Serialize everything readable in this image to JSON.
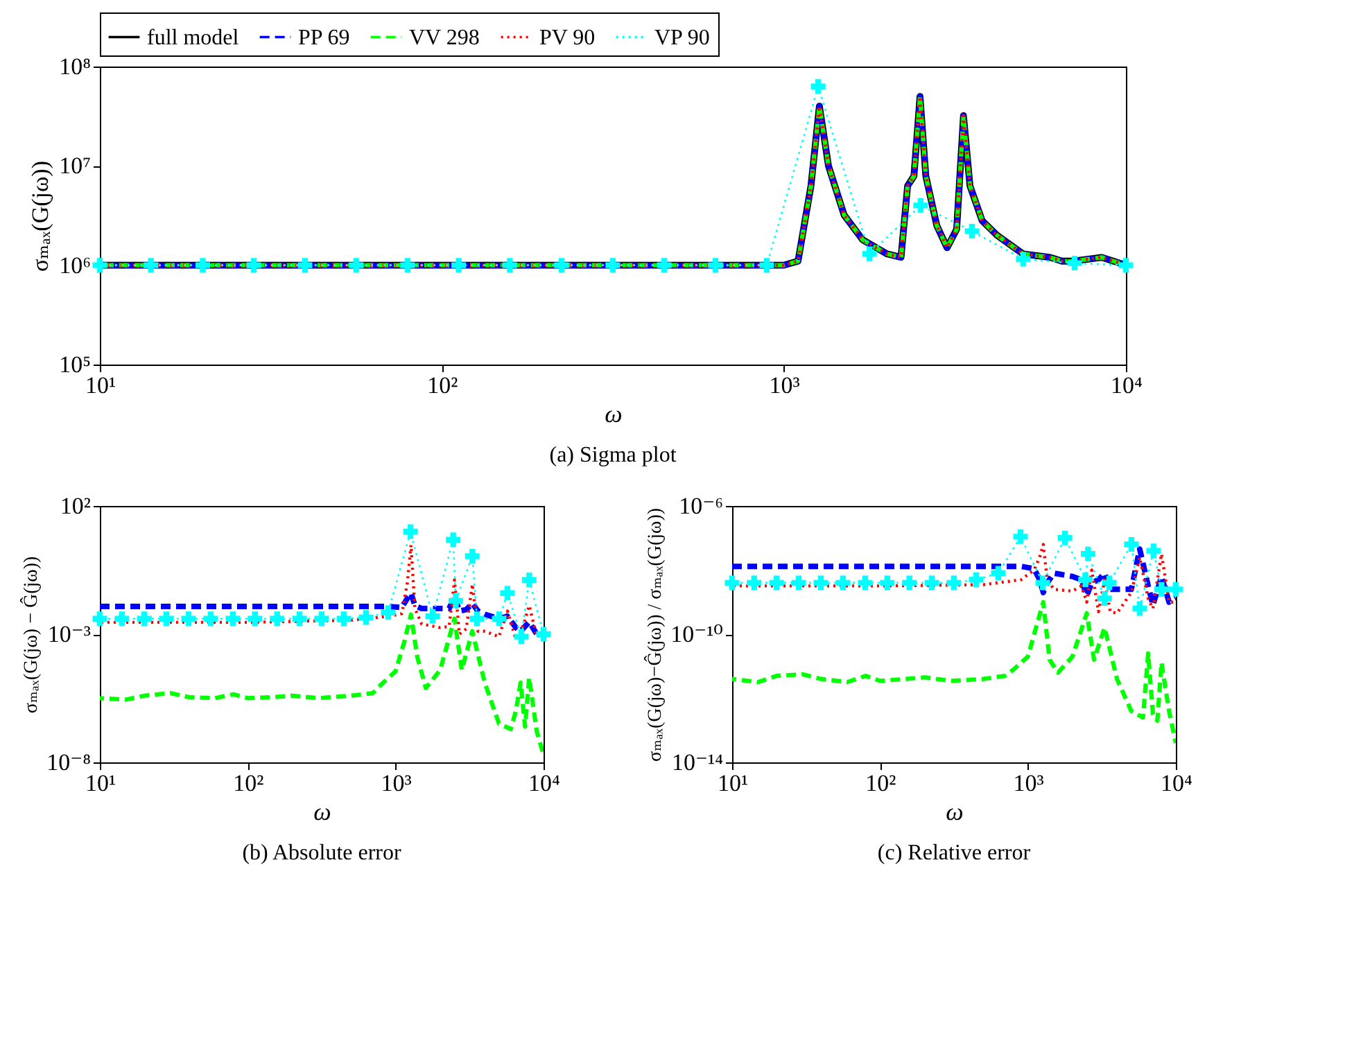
{
  "chart_data": [
    {
      "type": "line",
      "title": "(a) Sigma plot",
      "xlabel": "ω",
      "ylabel": "σₘₐₓ(G(jω))",
      "log": "xy",
      "legend": "top",
      "xlim": [
        10,
        10000
      ],
      "ylim": [
        100000,
        100000000
      ],
      "xticks": [
        {
          "value": 10,
          "label": "10¹"
        },
        {
          "value": 100,
          "label": "10²"
        },
        {
          "value": 1000,
          "label": "10³"
        },
        {
          "value": 10000,
          "label": "10⁴"
        }
      ],
      "yticks": [
        {
          "value": 100000,
          "label": "10⁵"
        },
        {
          "value": 1000000,
          "label": "10⁶"
        },
        {
          "value": 10000000,
          "label": "10⁷"
        },
        {
          "value": 100000000,
          "label": "10⁸"
        }
      ],
      "x": [
        10,
        100,
        1000,
        1100,
        1200,
        1270,
        1350,
        1500,
        1700,
        2000,
        2200,
        2300,
        2400,
        2500,
        2600,
        2800,
        3000,
        3200,
        3350,
        3500,
        3800,
        4200,
        5000,
        6000,
        6500,
        7000,
        8500,
        10000
      ],
      "series": [
        {
          "name": "full model",
          "color": "#000000",
          "line_style": "solid",
          "values": [
            1000000.0,
            1000000.0,
            1000000.0,
            1100000.0,
            6300000.0,
            40000000.0,
            10000000.0,
            3200000.0,
            1800000.0,
            1300000.0,
            1200000.0,
            6300000.0,
            7900000.0,
            50000000.0,
            7900000.0,
            2500000.0,
            1500000.0,
            2300000.0,
            32000000.0,
            6300000.0,
            2800000.0,
            2000000.0,
            1300000.0,
            1200000.0,
            1100000.0,
            1100000.0,
            1200000.0,
            1000000.0
          ]
        },
        {
          "name": "PP 69",
          "color": "#0000ff",
          "line_style": "dashed",
          "values": [
            1000000.0,
            1000000.0,
            1000000.0,
            1100000.0,
            6300000.0,
            40000000.0,
            10000000.0,
            3200000.0,
            1800000.0,
            1300000.0,
            1200000.0,
            6300000.0,
            7900000.0,
            50000000.0,
            7900000.0,
            2500000.0,
            1500000.0,
            2300000.0,
            32000000.0,
            6300000.0,
            2800000.0,
            2000000.0,
            1300000.0,
            1200000.0,
            1100000.0,
            1100000.0,
            1200000.0,
            1000000.0
          ]
        },
        {
          "name": "VV 298",
          "color": "#00ff00",
          "line_style": "dashed",
          "values": [
            1000000.0,
            1000000.0,
            1000000.0,
            1100000.0,
            6300000.0,
            40000000.0,
            10000000.0,
            3200000.0,
            1800000.0,
            1300000.0,
            1200000.0,
            6300000.0,
            7900000.0,
            50000000.0,
            7900000.0,
            2500000.0,
            1500000.0,
            2300000.0,
            32000000.0,
            6300000.0,
            2800000.0,
            2000000.0,
            1300000.0,
            1200000.0,
            1100000.0,
            1100000.0,
            1200000.0,
            1000000.0
          ]
        },
        {
          "name": "PV 90",
          "color": "#ff0000",
          "line_style": "dotted",
          "values": [
            1000000.0,
            1000000.0,
            1000000.0,
            1100000.0,
            6300000.0,
            40000000.0,
            10000000.0,
            3200000.0,
            1800000.0,
            1300000.0,
            1200000.0,
            6300000.0,
            7900000.0,
            50000000.0,
            7900000.0,
            2500000.0,
            1500000.0,
            2300000.0,
            32000000.0,
            6300000.0,
            2800000.0,
            2000000.0,
            1300000.0,
            1200000.0,
            1100000.0,
            1100000.0,
            1200000.0,
            1000000.0
          ]
        },
        {
          "name": "VP 90",
          "color": "#00ffff",
          "line_style": "dotted",
          "marker": "cross",
          "x": [
            10,
            14.1,
            20,
            28.2,
            39.8,
            56.2,
            79.4,
            112,
            158,
            224,
            316,
            447,
            631,
            891,
            1260,
            1780,
            2510,
            3550,
            5010,
            7080,
            10000
          ],
          "values": [
            1000000.0,
            1000000.0,
            1000000.0,
            1000000.0,
            1000000.0,
            1000000.0,
            1000000.0,
            1000000.0,
            1000000.0,
            1000000.0,
            1000000.0,
            1000000.0,
            1000000.0,
            1000000.0,
            63000000.0,
            1300000.0,
            4000000.0,
            2200000.0,
            1150000.0,
            1050000.0,
            1000000.0
          ]
        }
      ]
    },
    {
      "type": "line",
      "title": "(b) Absolute error",
      "xlabel": "ω",
      "ylabel": "σₘₐₓ(G(jω) − Ĝ(jω))",
      "log": "xy",
      "xlim": [
        10,
        10000
      ],
      "ylim": [
        1e-08,
        100
      ],
      "xticks": [
        {
          "value": 10,
          "label": "10¹"
        },
        {
          "value": 100,
          "label": "10²"
        },
        {
          "value": 1000,
          "label": "10³"
        },
        {
          "value": 10000,
          "label": "10⁴"
        }
      ],
      "yticks": [
        {
          "value": 1e-08,
          "label": "10⁻⁸"
        },
        {
          "value": 0.001,
          "label": "10⁻³"
        },
        {
          "value": 100,
          "label": "10²"
        }
      ],
      "x": [
        10,
        100,
        500,
        900,
        1100,
        1200,
        1270,
        1350,
        1500,
        2000,
        2300,
        2500,
        2700,
        3000,
        3300,
        3600,
        4000,
        5000,
        5700,
        6500,
        7000,
        8000,
        9000,
        10000
      ],
      "series": [
        {
          "color": "#0000ff",
          "line_style": "dashed",
          "values": [
            0.012,
            0.012,
            0.012,
            0.012,
            0.011,
            0.025,
            0.04,
            0.013,
            0.01,
            0.01,
            0.01,
            0.028,
            0.008,
            0.009,
            0.016,
            0.008,
            0.006,
            0.004,
            0.005,
            0.0018,
            0.0013,
            0.003,
            0.001,
            0.001
          ]
        },
        {
          "color": "#00ff00",
          "line_style": "dashed",
          "x": [
            10,
            15,
            20,
            30,
            40,
            60,
            80,
            100,
            150,
            200,
            300,
            500,
            700,
            800,
            1000,
            1150,
            1270,
            1400,
            1600,
            2000,
            2500,
            2800,
            3300,
            4000,
            5000,
            6000,
            6500,
            7000,
            7500,
            8000,
            9000,
            10000
          ],
          "values": [
            3.2e-06,
            2.8e-06,
            4e-06,
            5e-06,
            3.5e-06,
            3.2e-06,
            4.5e-06,
            3.2e-06,
            3.5e-06,
            4e-06,
            3.2e-06,
            4e-06,
            5e-06,
            1.1e-05,
            3.6e-05,
            0.00056,
            0.0058,
            0.00013,
            7.9e-06,
            4e-05,
            0.004,
            4e-05,
            0.0013,
            1.3e-05,
            3.2e-07,
            2e-07,
            1e-06,
            1.3e-05,
            2.5e-07,
            2e-05,
            1.6e-07,
            2e-08
          ]
        },
        {
          "color": "#ff0000",
          "line_style": "dotted",
          "values": [
            0.0029,
            0.0029,
            0.0035,
            0.005,
            0.0063,
            0.1,
            3,
            0.01,
            0.0025,
            0.0018,
            0.002,
            0.13,
            0.001,
            0.0016,
            0.089,
            0.0013,
            0.0013,
            0.0008,
            0.008,
            0.00063,
            0.001,
            0.013,
            0.0008,
            0.001
          ]
        },
        {
          "color": "#00ffff",
          "line_style": "dotted",
          "marker": "cross",
          "x": [
            10,
            14.1,
            20,
            28.2,
            39.8,
            56.2,
            79.4,
            112,
            158,
            224,
            316,
            447,
            631,
            891,
            1260,
            1780,
            2450,
            2550,
            3300,
            3550,
            5010,
            5700,
            7080,
            8000,
            10000
          ],
          "values": [
            0.004,
            0.004,
            0.004,
            0.004,
            0.004,
            0.004,
            0.004,
            0.004,
            0.004,
            0.004,
            0.004,
            0.004,
            0.0045,
            0.007,
            10,
            0.005,
            4.8,
            0.02,
            1.1,
            0.004,
            0.004,
            0.04,
            0.0008,
            0.13,
            0.001
          ]
        }
      ]
    },
    {
      "type": "line",
      "title": "(c) Relative error",
      "xlabel": "ω",
      "ylabel": "σₘₐₓ(G(jω)−Ĝ(jω)) / σₘₐₓ(G(jω))",
      "log": "xy",
      "xlim": [
        10,
        10000
      ],
      "ylim": [
        1e-14,
        1e-06
      ],
      "xticks": [
        {
          "value": 10,
          "label": "10¹"
        },
        {
          "value": 100,
          "label": "10²"
        },
        {
          "value": 1000,
          "label": "10³"
        },
        {
          "value": 10000,
          "label": "10⁴"
        }
      ],
      "yticks": [
        {
          "value": 1e-14,
          "label": "10⁻¹⁴"
        },
        {
          "value": 1e-10,
          "label": "10⁻¹⁰"
        },
        {
          "value": 1e-06,
          "label": "10⁻⁶"
        }
      ],
      "x": [
        10,
        100,
        500,
        900,
        1100,
        1200,
        1270,
        1350,
        1500,
        2000,
        2300,
        2500,
        2700,
        3000,
        3300,
        3600,
        4000,
        5000,
        5700,
        6500,
        7000,
        8000,
        9000,
        10000
      ],
      "series": [
        {
          "color": "#0000ff",
          "line_style": "dashed",
          "values": [
            1.3e-08,
            1.3e-08,
            1.3e-08,
            1.3e-08,
            1.1e-08,
            5e-09,
            2e-09,
            4e-09,
            8e-09,
            6.3e-09,
            5e-09,
            1.6e-09,
            4e-09,
            5e-09,
            8e-09,
            2.5e-09,
            2.5e-09,
            2.5e-09,
            4.5e-08,
            3.2e-09,
            8e-10,
            6.3e-09,
            1e-09,
            1.3e-09
          ]
        },
        {
          "color": "#00ff00",
          "line_style": "dashed",
          "x": [
            10,
            15,
            20,
            30,
            40,
            60,
            80,
            100,
            150,
            200,
            300,
            500,
            700,
            800,
            1000,
            1150,
            1270,
            1400,
            1600,
            2000,
            2500,
            2800,
            3300,
            4000,
            5000,
            6000,
            6500,
            7000,
            7500,
            8000,
            9000,
            10000
          ],
          "values": [
            4e-12,
            3.2e-12,
            5e-12,
            5.6e-12,
            4e-12,
            3.2e-12,
            5e-12,
            3.5e-12,
            4e-12,
            4.5e-12,
            3.5e-12,
            4e-12,
            5e-12,
            7.9e-12,
            2e-11,
            2e-10,
            1e-09,
            1.6e-11,
            6.3e-12,
            2e-11,
            4.5e-10,
            1.6e-11,
            1.6e-10,
            4e-12,
            4e-13,
            2.5e-13,
            2.5e-11,
            3.2e-13,
            2e-13,
            1.3e-11,
            4e-13,
            4e-14
          ]
        },
        {
          "color": "#ff0000",
          "line_style": "dotted",
          "values": [
            3.2e-09,
            3.2e-09,
            3.5e-09,
            5e-09,
            1e-08,
            2.5e-08,
            6.3e-08,
            5e-09,
            2.5e-09,
            2.2e-09,
            3.2e-09,
            1e-09,
            1e-08,
            5e-10,
            5e-09,
            5e-10,
            4.5e-10,
            2e-09,
            2.5e-08,
            1.3e-09,
            6.3e-10,
            3.2e-08,
            1e-09,
            1e-09
          ]
        },
        {
          "color": "#00ffff",
          "line_style": "dotted",
          "marker": "cross",
          "x": [
            10,
            14.1,
            20,
            28.2,
            39.8,
            56.2,
            79.4,
            112,
            158,
            224,
            316,
            447,
            631,
            891,
            1260,
            1780,
            2450,
            2550,
            3300,
            3550,
            5010,
            5700,
            7080,
            8000,
            10000
          ],
          "values": [
            4e-09,
            4e-09,
            4e-09,
            4e-09,
            4e-09,
            4e-09,
            4e-09,
            4e-09,
            4e-09,
            4e-09,
            4e-09,
            5e-09,
            8e-09,
            1.1e-07,
            4e-09,
            1e-07,
            5e-09,
            3.2e-08,
            1.3e-09,
            4e-09,
            6.3e-08,
            6.3e-10,
            4e-08,
            2.5e-09,
            2.5e-09
          ]
        }
      ]
    }
  ]
}
